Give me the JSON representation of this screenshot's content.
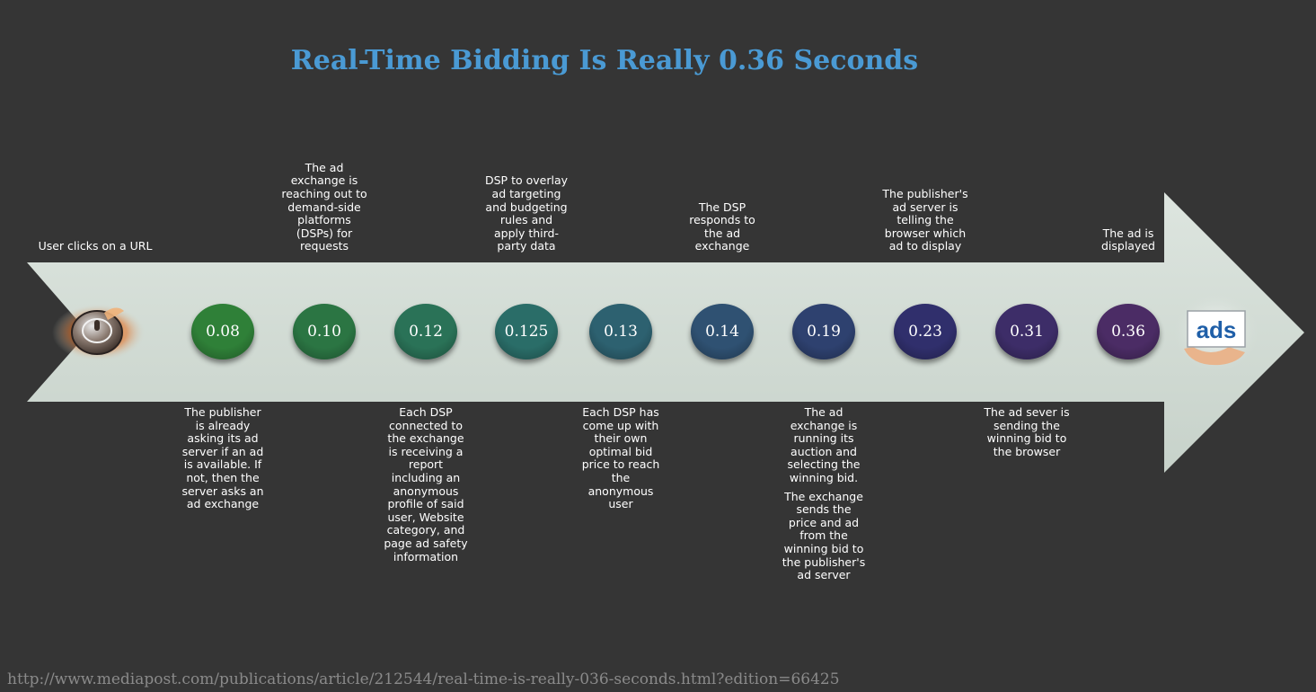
{
  "title": "Real-Time Bidding Is Really 0.36 Seconds",
  "start_label": "User clicks on a URL",
  "end_label": "The ad is displayed",
  "ads_logo_text": "ads",
  "steps": [
    {
      "time": "0.08",
      "text": "The publisher is already asking its ad server if an ad is available. If not, then the server asks an ad exchange",
      "color": "#2f8038"
    },
    {
      "time": "0.10",
      "text": "The ad exchange is reaching out to demand-side platforms (DSPs) for requests",
      "color": "#2b7543"
    },
    {
      "time": "0.12",
      "text": "Each DSP connected to the exchange is receiving a report including an anonymous profile of said user, Website category, and page ad safety information",
      "color": "#2a7257"
    },
    {
      "time": "0.125",
      "text": "DSP to overlay ad targeting and budgeting rules and apply third-party data",
      "color": "#2a6d68"
    },
    {
      "time": "0.13",
      "text": "Each DSP has come up with their own optimal bid price to reach the anonymous user",
      "color": "#2d6170"
    },
    {
      "time": "0.14",
      "text": "The DSP responds to the ad exchange",
      "color": "#2f5172"
    },
    {
      "time": "0.19",
      "text": "The ad exchange is running its auction and selecting the winning bid.",
      "text2": "The exchange sends the price and ad from the winning bid to the publisher's ad server",
      "color": "#2e416f"
    },
    {
      "time": "0.23",
      "text": "The publisher's ad server is telling the browser which ad to display",
      "color": "#302f6c"
    },
    {
      "time": "0.31",
      "text": "The ad sever is sending the winning bid to the browser",
      "color": "#3d2d68"
    },
    {
      "time": "0.36",
      "text": "The ad is displayed",
      "color": "#4b2c65"
    }
  ],
  "source_url": "http://www.mediapost.com/publications/article/212544/real-time-is-really-036-seconds.html?edition=66425",
  "colors": {
    "background": "#353535",
    "arrow": "#d0dad3",
    "title": "#4a9ad4",
    "source": "#8a8a8a"
  }
}
